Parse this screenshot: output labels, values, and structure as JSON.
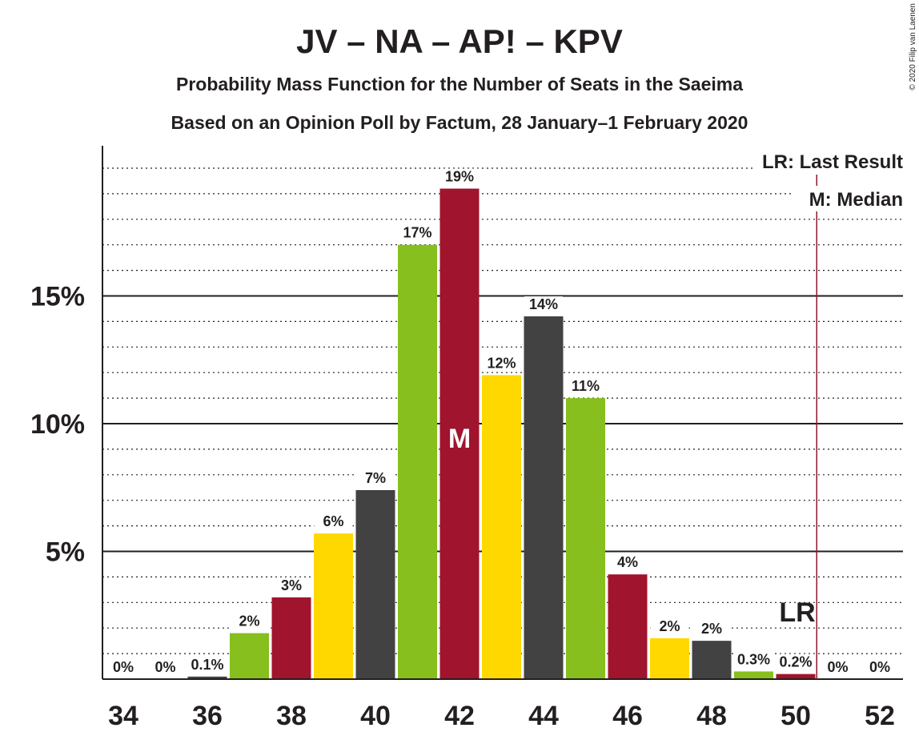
{
  "title": "JV – NA – AP! – KPV",
  "subtitle1": "Probability Mass Function for the Number of Seats in the Saeima",
  "subtitle2": "Based on an Opinion Poll by Factum, 28 January–1 February 2020",
  "copyright": "© 2020 Filip van Laenen",
  "legend": {
    "last_result": "LR: Last Result",
    "median": "M: Median"
  },
  "marker_labels": {
    "median": "M",
    "last_result": "LR"
  },
  "colors": {
    "crimson": "#A0142D",
    "yellow": "#FFD800",
    "dark": "#424242",
    "green": "#86BF1E",
    "lr_line": "#8B1A2B"
  },
  "chart_data": {
    "type": "bar",
    "title": "JV – NA – AP! – KPV",
    "xlabel": "",
    "ylabel": "",
    "x": [
      34,
      35,
      36,
      37,
      38,
      39,
      40,
      41,
      42,
      43,
      44,
      45,
      46,
      47,
      48,
      49,
      50,
      51,
      52
    ],
    "values": [
      0,
      0,
      0.1,
      1.8,
      3.2,
      5.7,
      7.4,
      17.0,
      19.2,
      11.9,
      14.2,
      11.0,
      4.1,
      1.6,
      1.5,
      0.3,
      0.2,
      0,
      0
    ],
    "labels": [
      "0%",
      "0%",
      "0.1%",
      "2%",
      "3%",
      "6%",
      "7%",
      "17%",
      "19%",
      "12%",
      "14%",
      "11%",
      "4%",
      "2%",
      "2%",
      "0.3%",
      "0.2%",
      "0%",
      "0%"
    ],
    "bar_colors": [
      "crimson",
      "yellow",
      "dark",
      "green",
      "crimson",
      "yellow",
      "dark",
      "green",
      "crimson",
      "yellow",
      "dark",
      "green",
      "crimson",
      "yellow",
      "dark",
      "green",
      "crimson",
      "yellow",
      "dark"
    ],
    "xticks": [
      34,
      36,
      38,
      40,
      42,
      44,
      46,
      48,
      50,
      52
    ],
    "xtick_labels": [
      "34",
      "36",
      "38",
      "40",
      "42",
      "44",
      "46",
      "48",
      "50",
      "52"
    ],
    "yticks": [
      5,
      10,
      15
    ],
    "ytick_labels": [
      "5%",
      "10%",
      "15%"
    ],
    "ylim": [
      0,
      21
    ],
    "minor_grid_step": 1,
    "median_seat": 42,
    "last_result_seat": 50,
    "last_result_line_at": 50.5,
    "legend_position": "top-right"
  }
}
